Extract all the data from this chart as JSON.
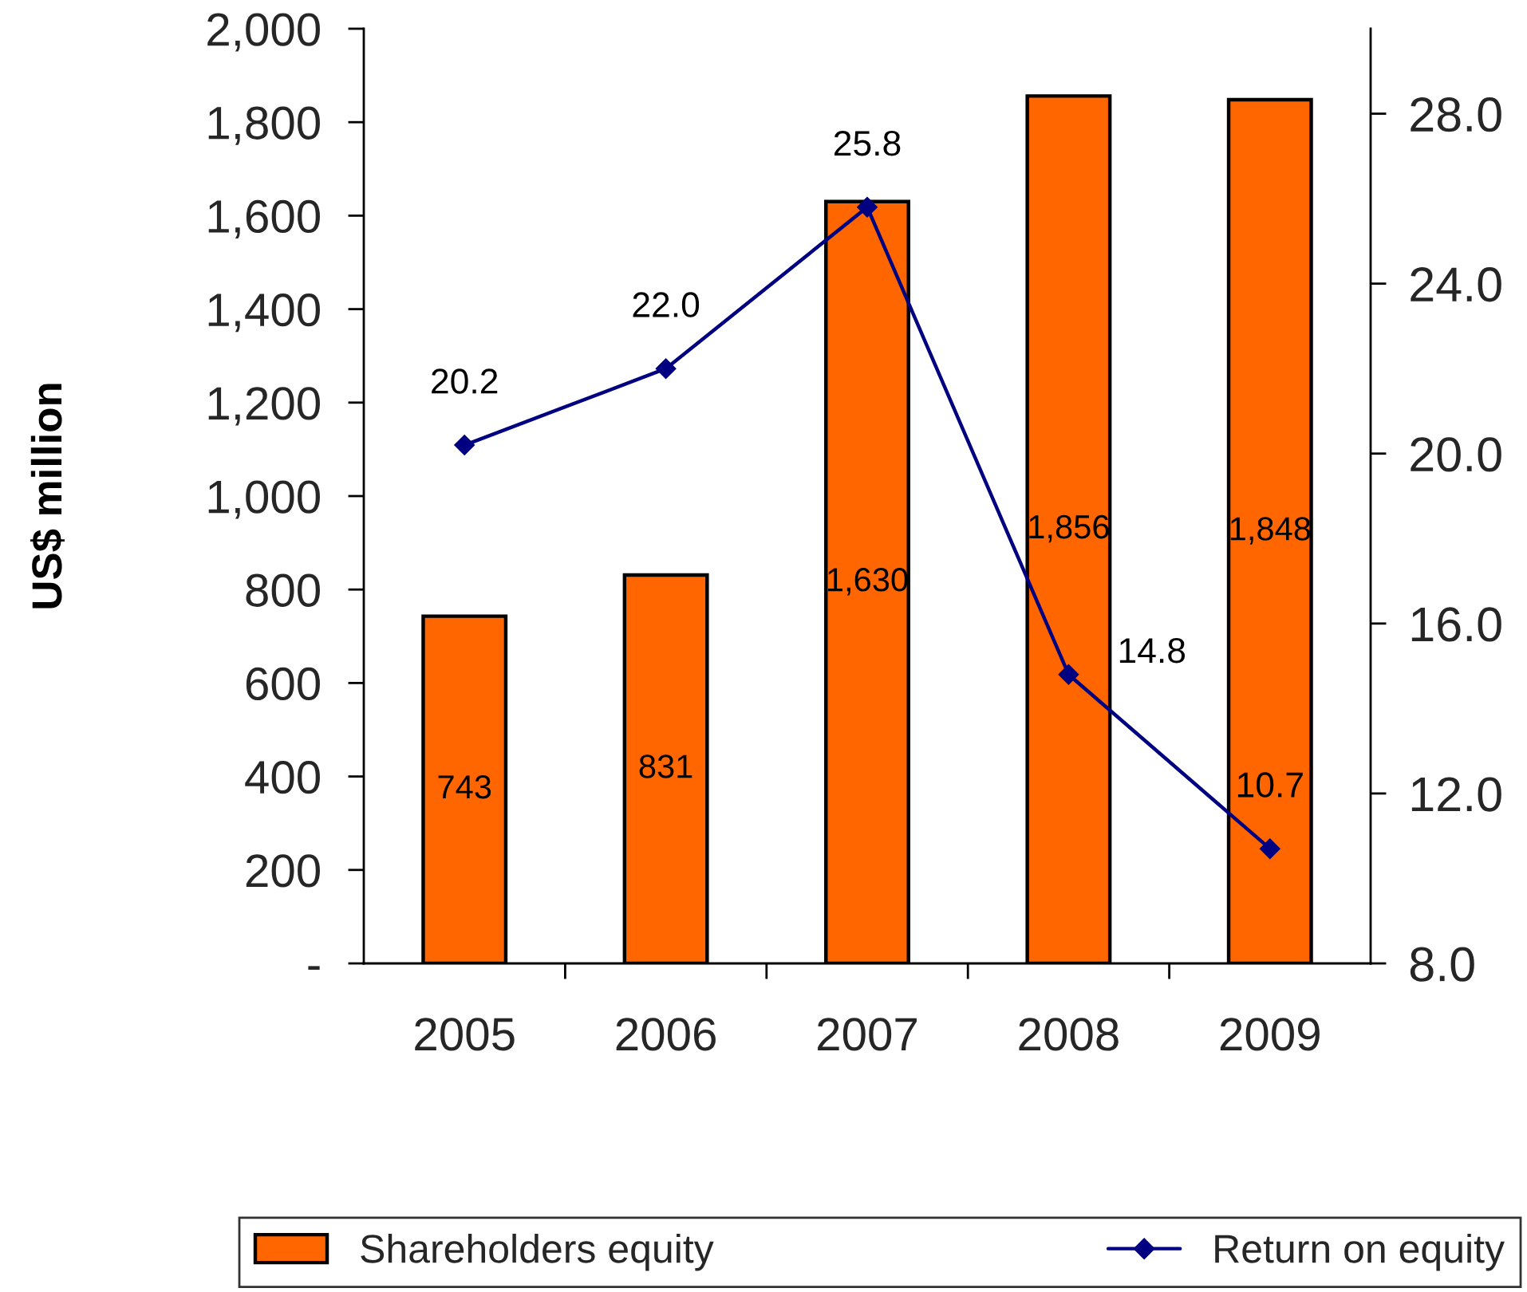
{
  "chart_data": {
    "type": "bar",
    "categories": [
      "2005",
      "2006",
      "2007",
      "2008",
      "2009"
    ],
    "ylabel": "US$ million",
    "ylim": [
      0,
      2000
    ],
    "yticks": [
      {
        "value": 0,
        "label": "-"
      },
      200,
      400,
      600,
      800,
      {
        "value": 1000,
        "label": "1,000"
      },
      {
        "value": 1200,
        "label": "1,200"
      },
      {
        "value": 1400,
        "label": "1,400"
      },
      {
        "value": 1600,
        "label": "1,600"
      },
      {
        "value": 1800,
        "label": "1,800"
      },
      {
        "value": 2000,
        "label": "2,000"
      }
    ],
    "y2lim": [
      8,
      30
    ],
    "y2ticks": [
      {
        "value": 8,
        "label": "8.0"
      },
      {
        "value": 12,
        "label": "12.0"
      },
      {
        "value": 16,
        "label": "16.0"
      },
      {
        "value": 20,
        "label": "20.0"
      },
      {
        "value": 24,
        "label": "24.0"
      },
      {
        "value": 28,
        "label": "28.0"
      }
    ],
    "grid": false,
    "legend": "bottom",
    "series": [
      {
        "name": "Shareholders equity",
        "color": "#ff6600",
        "values": [
          743,
          831,
          1630,
          1856,
          1848
        ],
        "value_labels": [
          "743",
          "831",
          "1,630",
          "1,856",
          "1,848"
        ]
      },
      {
        "name": "Return on equity",
        "type": "line",
        "axis": "y2",
        "color": "#000080",
        "marker": "diamond",
        "values": [
          20.2,
          22.0,
          25.8,
          14.8,
          10.7
        ],
        "value_labels": [
          "20.2",
          "22.0",
          "25.8",
          "14.8",
          "10.7"
        ]
      }
    ]
  }
}
